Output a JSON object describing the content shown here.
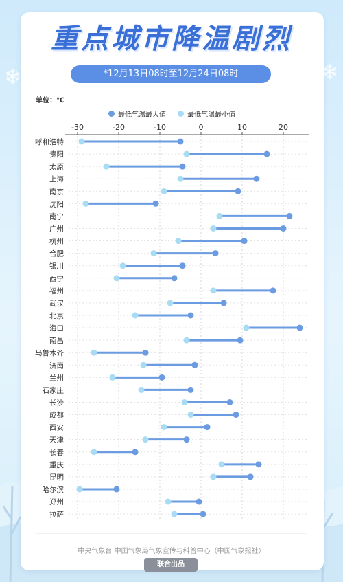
{
  "header": {
    "title": "重点城市降温剧烈",
    "date_range": "*12月13日08时至12月24日08时"
  },
  "unit_label": "单位：℃",
  "legend": {
    "max_label": "最低气温最大值",
    "min_label": "最低气温最小值"
  },
  "colors": {
    "max": "#6b9be0",
    "min": "#a8dcf5",
    "line": "#6b9be0",
    "accent": "#3a6fd8"
  },
  "chart_data": {
    "type": "dumbbell",
    "xlim": [
      -31,
      25
    ],
    "xticks": [
      -30,
      -20,
      -10,
      0,
      10,
      20
    ],
    "grid": true,
    "series": [
      {
        "name": "最低气温最大值"
      },
      {
        "name": "最低气温最小值"
      }
    ],
    "rows": [
      {
        "city": "呼和浩特",
        "min": -29,
        "max": -5
      },
      {
        "city": "贵阳",
        "min": -3.5,
        "max": 16
      },
      {
        "city": "太原",
        "min": -23,
        "max": -4.5
      },
      {
        "city": "上海",
        "min": -5,
        "max": 13.5
      },
      {
        "city": "南京",
        "min": -9,
        "max": 9
      },
      {
        "city": "沈阳",
        "min": -28,
        "max": -11
      },
      {
        "city": "南宁",
        "min": 4.5,
        "max": 21.5
      },
      {
        "city": "广州",
        "min": 3,
        "max": 20
      },
      {
        "city": "杭州",
        "min": -5.5,
        "max": 10.5
      },
      {
        "city": "合肥",
        "min": -11.5,
        "max": 3.5
      },
      {
        "city": "银川",
        "min": -19,
        "max": -4.5
      },
      {
        "city": "西宁",
        "min": -20.5,
        "max": -6.5
      },
      {
        "city": "福州",
        "min": 3,
        "max": 17.5
      },
      {
        "city": "武汉",
        "min": -7.5,
        "max": 5.5
      },
      {
        "city": "北京",
        "min": -16,
        "max": -2.5
      },
      {
        "city": "海口",
        "min": 11,
        "max": 24
      },
      {
        "city": "南昌",
        "min": -3.5,
        "max": 9.5
      },
      {
        "city": "乌鲁木齐",
        "min": -26,
        "max": -13.5
      },
      {
        "city": "济南",
        "min": -14,
        "max": -1.5
      },
      {
        "city": "兰州",
        "min": -21.5,
        "max": -9.5
      },
      {
        "city": "石家庄",
        "min": -14.5,
        "max": -2.5
      },
      {
        "city": "长沙",
        "min": -4,
        "max": 7
      },
      {
        "city": "成都",
        "min": -2.5,
        "max": 8.5
      },
      {
        "city": "西安",
        "min": -9,
        "max": 1.5
      },
      {
        "city": "天津",
        "min": -13.5,
        "max": -3.5
      },
      {
        "city": "长春",
        "min": -26,
        "max": -16
      },
      {
        "city": "重庆",
        "min": 5,
        "max": 14
      },
      {
        "city": "昆明",
        "min": 3,
        "max": 12
      },
      {
        "city": "哈尔滨",
        "min": -29.5,
        "max": -20.5
      },
      {
        "city": "郑州",
        "min": -8,
        "max": -0.5
      },
      {
        "city": "拉萨",
        "min": -6.5,
        "max": 0.5
      }
    ]
  },
  "footer": {
    "credits": "中央气象台   中国气象局气象宣传与科普中心（中国气象报社）",
    "badge": "联合出品"
  }
}
